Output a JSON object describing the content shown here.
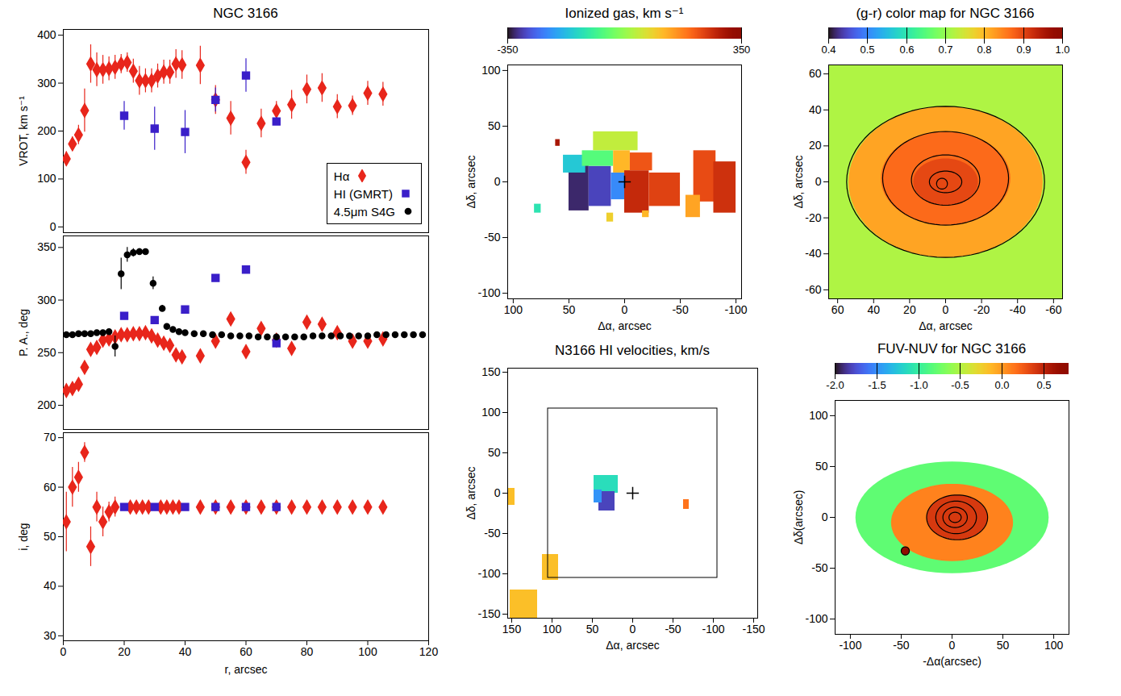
{
  "chart_data": [
    {
      "type": "scatter",
      "title": "NGC 3166",
      "ylabel": "VROT, km s⁻¹",
      "xlim": [
        0,
        120
      ],
      "xticks": [
        0,
        20,
        40,
        60,
        80,
        100,
        120
      ],
      "ylim": [
        -12,
        412
      ],
      "yticks": [
        0,
        100,
        200,
        300,
        400
      ],
      "tick_labels": "y",
      "legend": "lower right",
      "series": [
        {
          "name": "Hα",
          "color": "#e8261b",
          "marker": "diamond",
          "x": [
            1,
            3,
            5,
            7,
            9,
            11,
            13,
            15,
            17,
            19,
            21,
            23,
            25,
            27,
            29,
            31,
            33,
            35,
            37,
            39,
            45,
            50,
            55,
            60,
            65,
            70,
            75,
            80,
            85,
            90,
            95,
            100,
            105
          ],
          "values": [
            142,
            173,
            192,
            243,
            340,
            328,
            328,
            330,
            333,
            340,
            343,
            325,
            305,
            305,
            305,
            315,
            323,
            323,
            340,
            338,
            337,
            265,
            227,
            135,
            216,
            242,
            255,
            287,
            290,
            251,
            253,
            279,
            277
          ],
          "errors": [
            15,
            15,
            20,
            45,
            40,
            35,
            30,
            25,
            25,
            20,
            20,
            25,
            30,
            25,
            25,
            25,
            25,
            25,
            30,
            30,
            40,
            30,
            35,
            25,
            30,
            20,
            30,
            30,
            30,
            25,
            20,
            25,
            25
          ]
        },
        {
          "name": "HI (GMRT)",
          "color": "#3a1fc9",
          "marker": "square",
          "x": [
            20,
            30,
            40,
            50,
            60,
            70
          ],
          "values": [
            232,
            205,
            198,
            265,
            316,
            220
          ],
          "errors": [
            30,
            45,
            45,
            25,
            35,
            8
          ]
        },
        {
          "name": "4.5μm S4G",
          "color": "#000000",
          "marker": "circle",
          "x": [],
          "values": [],
          "errors": []
        }
      ]
    },
    {
      "type": "scatter",
      "ylabel": "P. A., deg",
      "xlim": [
        0,
        120
      ],
      "xticks": [
        0,
        20,
        40,
        60,
        80,
        100,
        120
      ],
      "ylim": [
        177,
        361
      ],
      "yticks": [
        200,
        250,
        300,
        350
      ],
      "tick_labels": "y",
      "series": [
        {
          "name": "Hα",
          "color": "#e8261b",
          "marker": "diamond",
          "x": [
            1,
            3,
            5,
            7,
            9,
            11,
            13,
            15,
            17,
            19,
            21,
            23,
            25,
            27,
            29,
            31,
            33,
            35,
            37,
            39,
            45,
            50,
            55,
            60,
            65,
            70,
            75,
            80,
            85,
            90,
            95,
            100,
            105
          ],
          "values": [
            214,
            216,
            220,
            236,
            253,
            255,
            262,
            263,
            265,
            267,
            267,
            268,
            268,
            269,
            266,
            262,
            259,
            257,
            248,
            246,
            247,
            261,
            282,
            251,
            273,
            262,
            254,
            279,
            277,
            269,
            261,
            261,
            263
          ],
          "errors": [
            2,
            2,
            2,
            2,
            2,
            2,
            2,
            2,
            2,
            2,
            2,
            2,
            2,
            2,
            2,
            2,
            2,
            2,
            2,
            2,
            2,
            2,
            3,
            2,
            5,
            4,
            2,
            2,
            2,
            2,
            2,
            2,
            2
          ]
        },
        {
          "name": "HI (GMRT)",
          "color": "#3a1fc9",
          "marker": "square",
          "x": [
            20,
            30,
            40,
            50,
            60,
            70
          ],
          "values": [
            285,
            281,
            291,
            321,
            329,
            259
          ],
          "errors": [
            0,
            0,
            0,
            0,
            0,
            3
          ]
        },
        {
          "name": "4.5μm S4G",
          "color": "#000000",
          "marker": "circle",
          "x": [
            1,
            3,
            5,
            7,
            9,
            11,
            13,
            15,
            17,
            19,
            21,
            23,
            25,
            27,
            29.5,
            32.5,
            34,
            36,
            38,
            40,
            43,
            46,
            49,
            52,
            55,
            58,
            61,
            64,
            67,
            70,
            73,
            76,
            79,
            82,
            85,
            88,
            91,
            94,
            97,
            100,
            103,
            106,
            109,
            112,
            115,
            118
          ],
          "values": [
            267,
            267,
            268,
            268,
            268,
            269,
            269,
            270,
            256,
            325,
            343,
            345,
            346,
            346,
            316,
            292,
            275,
            272,
            270,
            269,
            268,
            268,
            267,
            267,
            266,
            266,
            266,
            265,
            265,
            265,
            265,
            265,
            265,
            266,
            266,
            266,
            266,
            266,
            266,
            266,
            267,
            267,
            267,
            267,
            267,
            267
          ],
          "errors": [
            0,
            0,
            0,
            0,
            0,
            0,
            0,
            0,
            10,
            15,
            7,
            4,
            3,
            2,
            6,
            3,
            0,
            0,
            0,
            0,
            0,
            0,
            0,
            0,
            0,
            0,
            0,
            0,
            0,
            0,
            0,
            0,
            0,
            0,
            0,
            0,
            0,
            0,
            0,
            0,
            0,
            0,
            0,
            0,
            0,
            0
          ]
        }
      ]
    },
    {
      "type": "scatter",
      "ylabel": "i, deg",
      "xlabel": "r, arcsec",
      "xlim": [
        0,
        120
      ],
      "xticks": [
        0,
        20,
        40,
        60,
        80,
        100,
        120
      ],
      "ylim": [
        29,
        71
      ],
      "yticks": [
        30,
        40,
        50,
        60,
        70
      ],
      "series": [
        {
          "name": "Hα",
          "color": "#e8261b",
          "marker": "diamond",
          "x": [
            1,
            3,
            5,
            7,
            9,
            11,
            13,
            15,
            17,
            22,
            24,
            26,
            28,
            32,
            34,
            36,
            38,
            45,
            50,
            55,
            60,
            65,
            70,
            75,
            80,
            85,
            90,
            95,
            100,
            105
          ],
          "values": [
            53,
            60,
            62,
            67,
            48,
            56,
            53,
            55,
            56,
            56,
            56,
            56,
            56,
            56,
            56,
            56,
            56,
            56,
            56,
            56,
            56,
            56,
            56,
            56,
            56,
            56,
            56,
            56,
            56,
            56
          ],
          "errors": [
            6,
            4,
            3,
            2,
            4,
            3,
            3,
            2,
            2,
            0,
            0,
            0,
            0,
            0,
            0,
            0,
            0,
            0,
            0,
            0,
            0,
            0,
            0,
            0,
            0,
            0,
            0,
            0,
            0,
            0
          ]
        },
        {
          "name": "HI (GMRT)",
          "color": "#3a1fc9",
          "marker": "square",
          "x": [
            20,
            30,
            40,
            50,
            60,
            70
          ],
          "values": [
            56,
            56,
            56,
            56,
            56,
            56
          ],
          "errors": [
            0,
            0,
            0,
            0,
            0,
            0
          ]
        }
      ]
    },
    {
      "type": "map",
      "title": "Ionized gas, km s⁻¹",
      "xlabel": "Δα, arcsec",
      "ylabel": "Δδ, arcsec",
      "xlim": [
        105,
        -105
      ],
      "xticks": [
        100,
        50,
        0,
        -50,
        -100
      ],
      "ylim": [
        -105,
        105
      ],
      "yticks": [
        -100,
        -50,
        0,
        50,
        100
      ],
      "colorbar": {
        "lim": [
          -350,
          350
        ],
        "ticks": [
          -350,
          350
        ]
      },
      "center": [
        0,
        0
      ],
      "regions": [
        {
          "x": [
            50,
            32
          ],
          "y": [
            -26,
            18
          ],
          "value": -330
        },
        {
          "x": [
            32,
            12
          ],
          "y": [
            -22,
            14
          ],
          "value": -300
        },
        {
          "x": [
            12,
            0
          ],
          "y": [
            -16,
            8
          ],
          "value": -230
        },
        {
          "x": [
            55,
            35
          ],
          "y": [
            8,
            24
          ],
          "value": -160
        },
        {
          "x": [
            38,
            10
          ],
          "y": [
            14,
            28
          ],
          "value": -60
        },
        {
          "x": [
            28,
            -12
          ],
          "y": [
            28,
            45
          ],
          "value": 40
        },
        {
          "x": [
            10,
            -5
          ],
          "y": [
            8,
            28
          ],
          "value": 120
        },
        {
          "x": [
            0,
            -22
          ],
          "y": [
            -28,
            10
          ],
          "value": 270
        },
        {
          "x": [
            -5,
            -25
          ],
          "y": [
            10,
            26
          ],
          "value": 220
        },
        {
          "x": [
            -22,
            -50
          ],
          "y": [
            -22,
            8
          ],
          "value": 240
        },
        {
          "x": [
            -62,
            -82
          ],
          "y": [
            -18,
            28
          ],
          "value": 230
        },
        {
          "x": [
            -80,
            -100
          ],
          "y": [
            -28,
            18
          ],
          "value": 260
        },
        {
          "x": [
            -55,
            -68
          ],
          "y": [
            -32,
            -12
          ],
          "value": 140
        },
        {
          "x": [
            81,
            75
          ],
          "y": [
            -28,
            -20
          ],
          "value": -120
        },
        {
          "x": [
            62,
            58
          ],
          "y": [
            32,
            38
          ],
          "value": 300
        },
        {
          "x": [
            16,
            10
          ],
          "y": [
            -36,
            -28
          ],
          "value": 90
        },
        {
          "x": [
            -16,
            -22
          ],
          "y": [
            -32,
            -26
          ],
          "value": 120
        }
      ]
    },
    {
      "type": "map",
      "title": "N3166 HI velocities, km/s",
      "xlabel": "Δα, arcsec",
      "ylabel": "Δδ, arcsec",
      "xlim": [
        155,
        -155
      ],
      "xticks": [
        150,
        100,
        50,
        0,
        -50,
        -100,
        -150
      ],
      "ylim": [
        -155,
        155
      ],
      "yticks": [
        -150,
        -100,
        -50,
        0,
        50,
        100,
        150
      ],
      "zlim": [
        -350,
        350
      ],
      "center": [
        0,
        0
      ],
      "field_box": {
        "x": [
          105,
          -105
        ],
        "y": [
          -105,
          105
        ]
      },
      "regions": [
        {
          "x": [
            48,
            18
          ],
          "y": [
            0,
            22
          ],
          "value": -130
        },
        {
          "x": [
            42,
            22
          ],
          "y": [
            -22,
            2
          ],
          "value": -300
        },
        {
          "x": [
            48,
            38
          ],
          "y": [
            -12,
            4
          ],
          "value": -220
        },
        {
          "x": [
            112,
            92
          ],
          "y": [
            -108,
            -76
          ],
          "value": 110
        },
        {
          "x": [
            152,
            118
          ],
          "y": [
            -155,
            -120
          ],
          "value": 110
        },
        {
          "x": [
            155,
            146
          ],
          "y": [
            -15,
            6
          ],
          "value": 110
        },
        {
          "x": [
            -63,
            -70
          ],
          "y": [
            -20,
            -8
          ],
          "value": 190
        }
      ]
    },
    {
      "type": "map",
      "title": "(g-r) color map for NGC 3166",
      "xlabel": "Δα, arcsec",
      "ylabel": "Δδ, arcsec",
      "xlim": [
        65,
        -65
      ],
      "xticks": [
        60,
        40,
        20,
        0,
        -20,
        -40,
        -60
      ],
      "ylim": [
        -65,
        65
      ],
      "yticks": [
        -60,
        -40,
        -20,
        0,
        20,
        40,
        60
      ],
      "colorbar": {
        "lim": [
          0.4,
          1.0
        ],
        "ticks": [
          0.4,
          0.5,
          0.6,
          0.7,
          0.8,
          0.9,
          {
            "value": 1,
            "label": "1.0"
          }
        ]
      },
      "background": 0.72,
      "regions": [
        {
          "cx": 0,
          "cy": 0,
          "rx": 54,
          "ry": 42,
          "value": 0.82
        },
        {
          "cx": 0,
          "cy": 2,
          "rx": 36,
          "ry": 26,
          "value": 0.87
        },
        {
          "cx": 0,
          "cy": 0,
          "rx": 18,
          "ry": 13,
          "value": 0.9
        }
      ],
      "contours": [
        {
          "cx": 0,
          "cy": 0,
          "rx": 55,
          "ry": 42
        },
        {
          "cx": 0,
          "cy": 2,
          "rx": 35,
          "ry": 26
        },
        {
          "cx": 0,
          "cy": 1,
          "rx": 19,
          "ry": 14
        },
        {
          "cx": 0,
          "cy": 0,
          "rx": 9,
          "ry": 6
        },
        {
          "cx": 2,
          "cy": -1,
          "rx": 3,
          "ry": 3
        }
      ]
    },
    {
      "type": "map",
      "title": "FUV-NUV for NGC 3166",
      "xlabel": "-Δα(arcsec)",
      "ylabel": "Δδ(arcsec)",
      "xlim": [
        -115,
        115
      ],
      "xticks": [
        -100,
        -50,
        0,
        50,
        100
      ],
      "ylim": [
        -115,
        115
      ],
      "yticks": [
        -100,
        -50,
        0,
        50,
        100
      ],
      "colorbar": {
        "lim": [
          -2,
          0.8
        ],
        "ticks": [
          {
            "value": -2,
            "label": "-2.0"
          },
          -1.5,
          {
            "value": -1,
            "label": "-1.0"
          },
          -0.5,
          {
            "value": 0,
            "label": "0.0"
          },
          0.5
        ]
      },
      "regions": [
        {
          "cx": 0,
          "cy": 0,
          "rx": 95,
          "ry": 55,
          "value": -0.8
        },
        {
          "cx": 0,
          "cy": -5,
          "rx": 60,
          "ry": 38,
          "value": 0.1
        },
        {
          "cx": 5,
          "cy": 0,
          "rx": 30,
          "ry": 22,
          "value": 0.4
        },
        {
          "cx": -46,
          "cy": -33,
          "rx": 4,
          "ry": 4,
          "value": 0.8
        }
      ],
      "contours": [
        {
          "cx": 5,
          "cy": 0,
          "rx": 30,
          "ry": 22
        },
        {
          "cx": 4,
          "cy": 0,
          "rx": 20,
          "ry": 16
        },
        {
          "cx": 3,
          "cy": 0,
          "rx": 12,
          "ry": 10
        },
        {
          "cx": 3,
          "cy": 0,
          "rx": 6,
          "ry": 5
        },
        {
          "cx": -46,
          "cy": -33,
          "rx": 4,
          "ry": 4
        }
      ]
    }
  ]
}
